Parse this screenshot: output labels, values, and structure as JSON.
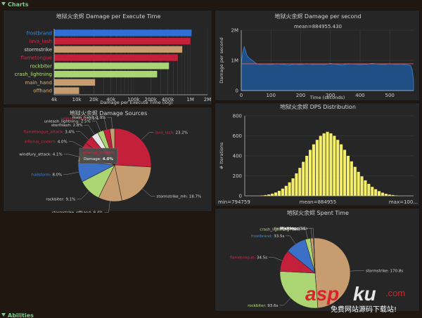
{
  "sections": {
    "charts_label": "Charts",
    "abilities_label": "Abilities"
  },
  "colors": {
    "page_bg": "#1f1710",
    "panel_bg": "#262626",
    "section_green": "#7fc98f",
    "line_blue": "#1f5e9e",
    "hist_yellow": "#f4ee6a"
  },
  "watermark": {
    "logo": "asp",
    "logo2": "ku",
    "suffix": ".com",
    "tagline": "免费网站源码下载站!"
  },
  "chart_data": [
    {
      "id": "damage_per_execute_time",
      "type": "bar",
      "orientation": "horizontal",
      "title": "地狱火余烬 Damage per Execute Time",
      "xlabel": "Damage per Execute Time (log)",
      "ylabel": "",
      "xscale": "log",
      "xlim": [
        4000,
        2000000
      ],
      "xticks": [
        "4k",
        "10k",
        "20k",
        "40k",
        "100k",
        "200k",
        "400k",
        "1M",
        "2M"
      ],
      "xtick_values": [
        4000,
        10000,
        20000,
        40000,
        100000,
        200000,
        400000,
        1000000,
        2000000
      ],
      "categories": [
        "frostbrand",
        "lava_lash",
        "stormstrike",
        "flametongue",
        "rockbiter",
        "crash_lightning",
        "main_hand",
        "offhand"
      ],
      "values": [
        1050000,
        1000000,
        720000,
        600000,
        420000,
        260000,
        21000,
        11000
      ],
      "bar_colors": [
        "#2f6fd8",
        "#c41f3b",
        "#c79c6e",
        "#c41f3b",
        "#abd473",
        "#abd473",
        "#c79c6e",
        "#c79c6e"
      ],
      "label_colors": [
        "#3c8de8",
        "#d6284a",
        "#dcdcdc",
        "#d6284a",
        "#b8e07a",
        "#b8e07a",
        "#d7b183",
        "#d7b183"
      ]
    },
    {
      "id": "damage_per_second",
      "type": "area",
      "title": "地狱火余烬 Damage per second",
      "annotation": "mean=884955.430",
      "xlabel": "Time (seconds)",
      "ylabel": "Damage per second",
      "xlim": [
        0,
        580
      ],
      "ylim": [
        0,
        2000000
      ],
      "xticks": [
        0,
        100,
        200,
        300,
        400,
        500
      ],
      "yticks": [
        "0",
        "1M",
        "2M"
      ],
      "ytick_values": [
        0,
        1000000,
        2000000
      ],
      "mean": 884955.43,
      "x": [
        0,
        5,
        10,
        15,
        20,
        30,
        40,
        50,
        60,
        80,
        100,
        120,
        140,
        160,
        180,
        200,
        220,
        240,
        260,
        280,
        300,
        320,
        340,
        360,
        380,
        400,
        420,
        440,
        460,
        480,
        500,
        520,
        540,
        560,
        570,
        575,
        580
      ],
      "values": [
        900000,
        1250000,
        1450000,
        1300000,
        1150000,
        1050000,
        980000,
        900000,
        870000,
        880000,
        860000,
        890000,
        870000,
        850000,
        880000,
        860000,
        890000,
        870000,
        880000,
        860000,
        900000,
        870000,
        850000,
        890000,
        880000,
        860000,
        870000,
        900000,
        880000,
        860000,
        890000,
        870000,
        880000,
        850000,
        830000,
        700000,
        350000
      ]
    },
    {
      "id": "damage_sources",
      "type": "pie",
      "title": "地狱火余烬 Damage Sources",
      "tooltip": {
        "title": "infernal_cinders",
        "label": "Damage:",
        "value": "4.0%"
      },
      "slices": [
        {
          "label": "lava_lash",
          "value": 23.2,
          "color": "#c41f3b",
          "label_color": "#d6284a"
        },
        {
          "label": "stormstrike_mh",
          "value": 18.7,
          "color": "#c79c6e",
          "label_color": "#dcdcdc"
        },
        {
          "label": "stormstrike_offhand",
          "value": 9.4,
          "color": "#c79c6e",
          "label_color": "#dcdcdc"
        },
        {
          "label": "rockbiter",
          "value": 9.1,
          "color": "#abd473",
          "label_color": "#dcdcdc"
        },
        {
          "label": "hailstorm",
          "value": 8.0,
          "color": "#3c70c6",
          "label_color": "#3c8de8"
        },
        {
          "label": "windfury_attack",
          "value": 4.1,
          "color": "#c79c6e",
          "label_color": "#dcdcdc"
        },
        {
          "label": "infernal_cinders",
          "value": 4.0,
          "color": "#c41f3b",
          "label_color": "#d6284a"
        },
        {
          "label": "flametongue_attack",
          "value": 3.4,
          "color": "#c41f3b",
          "label_color": "#d6284a"
        },
        {
          "label": "stormlash",
          "value": 2.8,
          "color": "#e6e6e6",
          "label_color": "#dcdcdc"
        },
        {
          "label": "unleash_lightning",
          "value": 2.5,
          "color": "#abd473",
          "label_color": "#dcdcdc"
        },
        {
          "label": "unleash_lava",
          "value": 2.5,
          "color": "#c41f3b",
          "label_color": "#d6284a"
        },
        {
          "label": "main_hand",
          "value": 1.9,
          "color": "#c79c6e",
          "label_color": "#dcdcdc"
        }
      ]
    },
    {
      "id": "dps_distribution",
      "type": "bar",
      "title": "地狱火余烬 DPS Distribution",
      "xlabel": "",
      "ylabel": "# Iterations",
      "ylim": [
        0,
        800
      ],
      "yticks": [
        0,
        200,
        400,
        600,
        800
      ],
      "footer": {
        "min": "min=794759",
        "mean": "mean=884955",
        "max": "max=100..."
      },
      "values": [
        4,
        8,
        14,
        22,
        34,
        50,
        72,
        100,
        135,
        175,
        225,
        280,
        340,
        400,
        460,
        515,
        560,
        600,
        625,
        640,
        625,
        600,
        560,
        515,
        460,
        400,
        345,
        290,
        240,
        195,
        155,
        120,
        90,
        66,
        47,
        32,
        21,
        13,
        8,
        4
      ]
    },
    {
      "id": "spent_time",
      "type": "pie",
      "title": "地狱火余烬 Spent Time",
      "slices": [
        {
          "label": "stormstrike",
          "value": 170.8,
          "display": "170.8s",
          "color": "#c79c6e",
          "label_color": "#dcdcdc"
        },
        {
          "label": "rockbiter",
          "value": 93.6,
          "display": "93.6s",
          "color": "#abd473",
          "label_color": "#b8e07a"
        },
        {
          "label": "flametongue",
          "value": 34.5,
          "display": "34.5s",
          "color": "#c41f3b",
          "label_color": "#d6284a"
        },
        {
          "label": "frostbrand",
          "value": 33.5,
          "display": "33.5s",
          "color": "#3c70c6",
          "label_color": "#3c8de8"
        },
        {
          "label": "crash_lightning",
          "value": 8.4,
          "display": "8.4s",
          "color": "#abd473",
          "label_color": "#b8e07a"
        },
        {
          "label": "feral_spirit",
          "value": 4.9,
          "display": "4.9s",
          "color": "#c79c6e",
          "label_color": "#dcdcdc"
        },
        {
          "label": "Waiting",
          "value": 0.6,
          "display": "0.6s",
          "color": "#ffffff",
          "label_color": "#ffffff"
        }
      ]
    }
  ]
}
